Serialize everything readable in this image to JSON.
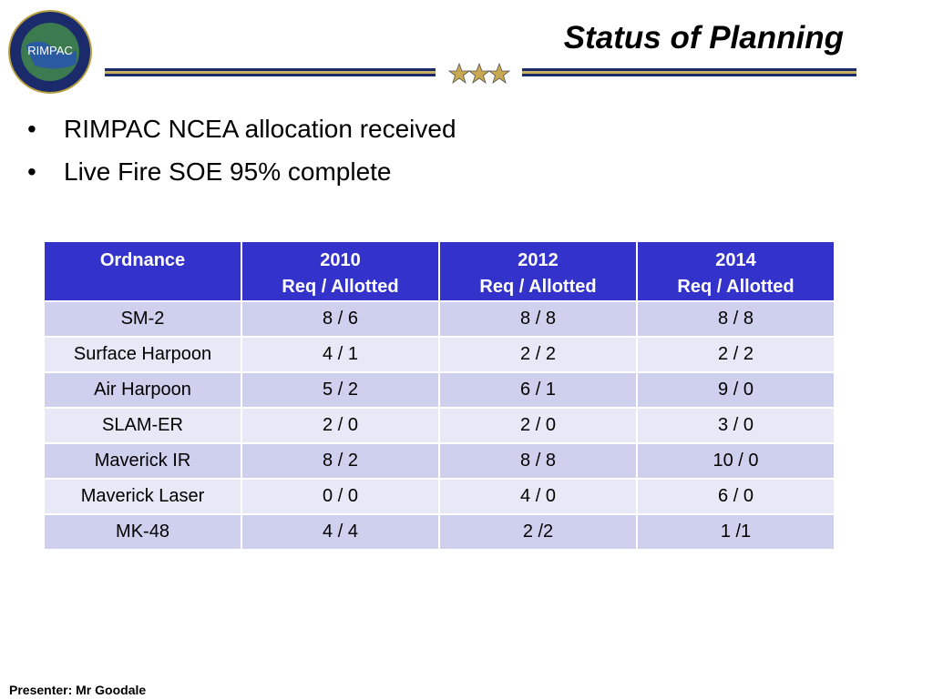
{
  "header": {
    "logo_text": "RIMPAC",
    "title": "Status of Planning"
  },
  "bullets": [
    "RIMPAC NCEA allocation received",
    "Live Fire SOE 95% complete"
  ],
  "table": {
    "columns": [
      [
        "Ordnance"
      ],
      [
        "2010",
        "Req / Allotted"
      ],
      [
        "2012",
        "Req / Allotted"
      ],
      [
        "2014",
        "Req / Allotted"
      ]
    ],
    "rows": [
      [
        "SM-2",
        "8 / 6",
        "8 / 8",
        "8 / 8"
      ],
      [
        "Surface Harpoon",
        "4 / 1",
        "2 / 2",
        "2 / 2"
      ],
      [
        "Air Harpoon",
        "5 / 2",
        "6 / 1",
        "9 / 0"
      ],
      [
        "SLAM-ER",
        "2 / 0",
        "2 / 0",
        "3 / 0"
      ],
      [
        "Maverick IR",
        "8 / 2",
        "8 / 8",
        "10 / 0"
      ],
      [
        "Maverick Laser",
        "0 / 0",
        "4 / 0",
        "6 / 0"
      ],
      [
        "MK-48",
        "4 / 4",
        "2 /2",
        "1 /1"
      ]
    ]
  },
  "footer": "Presenter: Mr Goodale"
}
